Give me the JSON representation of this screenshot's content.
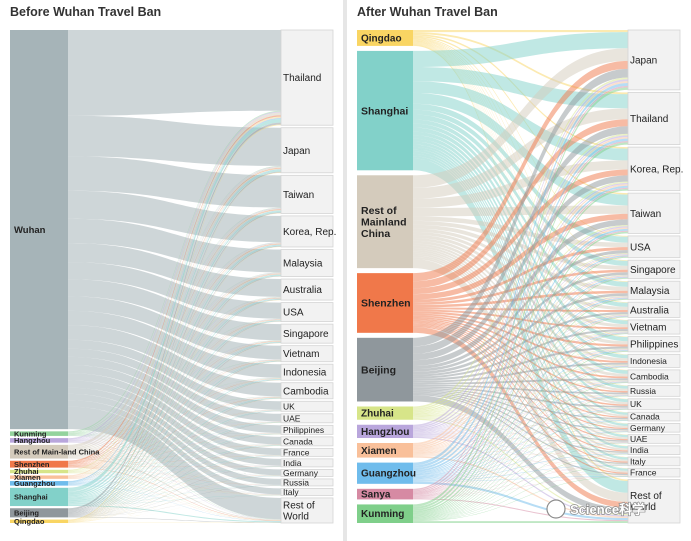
{
  "watermark": "Science科学",
  "chart_data": [
    {
      "type": "sankey",
      "title": "Before Wuhan Travel Ban",
      "sources": [
        {
          "name": "Wuhan",
          "value": 350,
          "color": "#a6b4b8"
        },
        {
          "name": "Kunming",
          "value": 4,
          "color": "#93d39d"
        },
        {
          "name": "Hangzhou",
          "value": 4,
          "color": "#b9a6dc"
        },
        {
          "name": "Rest of Main-land China",
          "value": 12,
          "color": "#d4cbbc"
        },
        {
          "name": "Shenzhen",
          "value": 6,
          "color": "#f0784a"
        },
        {
          "name": "Zhuhai",
          "value": 3,
          "color": "#d7e589"
        },
        {
          "name": "Xiamen",
          "value": 3,
          "color": "#f9c09a"
        },
        {
          "name": "Guangzhou",
          "value": 4,
          "color": "#6fbcec"
        },
        {
          "name": "Shanghai",
          "value": 16,
          "color": "#82d1c9"
        },
        {
          "name": "Beijing",
          "value": 8,
          "color": "#8f979c"
        },
        {
          "name": "Qingdao",
          "value": 3,
          "color": "#f9d563"
        }
      ],
      "destinations": [
        {
          "name": "Thailand",
          "value": 95
        },
        {
          "name": "Japan",
          "value": 45
        },
        {
          "name": "Taiwan",
          "value": 38
        },
        {
          "name": "Korea, Rep.",
          "value": 31
        },
        {
          "name": "Malaysia",
          "value": 27
        },
        {
          "name": "Australia",
          "value": 21
        },
        {
          "name": "USA",
          "value": 19
        },
        {
          "name": "Singapore",
          "value": 19
        },
        {
          "name": "Vietnam",
          "value": 16
        },
        {
          "name": "Indonesia",
          "value": 16
        },
        {
          "name": "Cambodia",
          "value": 16
        },
        {
          "name": "UK",
          "value": 10
        },
        {
          "name": "UAE",
          "value": 9
        },
        {
          "name": "Philippines",
          "value": 9
        },
        {
          "name": "Canada",
          "value": 9
        },
        {
          "name": "France",
          "value": 8
        },
        {
          "name": "India",
          "value": 8
        },
        {
          "name": "Germany",
          "value": 7
        },
        {
          "name": "Russia",
          "value": 7
        },
        {
          "name": "Italy",
          "value": 7
        },
        {
          "name": "Rest of World",
          "value": 25
        }
      ]
    },
    {
      "type": "sankey",
      "title": "After Wuhan Travel Ban",
      "sources": [
        {
          "name": "Qingdao",
          "value": 12,
          "color": "#f9d563"
        },
        {
          "name": "Shanghai",
          "value": 90,
          "color": "#82d1c9"
        },
        {
          "name": "Rest of Mainland China",
          "value": 70,
          "color": "#d4cbbc"
        },
        {
          "name": "Shenzhen",
          "value": 45,
          "color": "#f0784a"
        },
        {
          "name": "Beijing",
          "value": 48,
          "color": "#8f979c"
        },
        {
          "name": "Zhuhai",
          "value": 10,
          "color": "#d7e589"
        },
        {
          "name": "Hangzhou",
          "value": 10,
          "color": "#b9a6dc"
        },
        {
          "name": "Xiamen",
          "value": 11,
          "color": "#f9c09a"
        },
        {
          "name": "Guangzhou",
          "value": 16,
          "color": "#6fbcec"
        },
        {
          "name": "Sanya",
          "value": 8,
          "color": "#d68aa3"
        },
        {
          "name": "Kunming",
          "value": 14,
          "color": "#7fcf8a"
        }
      ],
      "destinations": [
        {
          "name": "Japan",
          "value": 55
        },
        {
          "name": "Thailand",
          "value": 48
        },
        {
          "name": "Korea, Rep.",
          "value": 40
        },
        {
          "name": "Taiwan",
          "value": 37
        },
        {
          "name": "USA",
          "value": 20
        },
        {
          "name": "Singapore",
          "value": 17
        },
        {
          "name": "Malaysia",
          "value": 17
        },
        {
          "name": "Australia",
          "value": 14
        },
        {
          "name": "Vietnam",
          "value": 13
        },
        {
          "name": "Philippines",
          "value": 14
        },
        {
          "name": "Indonesia",
          "value": 12
        },
        {
          "name": "Cambodia",
          "value": 12
        },
        {
          "name": "Russia",
          "value": 10
        },
        {
          "name": "UK",
          "value": 10
        },
        {
          "name": "Canada",
          "value": 8
        },
        {
          "name": "Germany",
          "value": 8
        },
        {
          "name": "UAE",
          "value": 8
        },
        {
          "name": "India",
          "value": 8
        },
        {
          "name": "Italy",
          "value": 8
        },
        {
          "name": "France",
          "value": 8
        },
        {
          "name": "Rest of World",
          "value": 40
        }
      ]
    }
  ]
}
